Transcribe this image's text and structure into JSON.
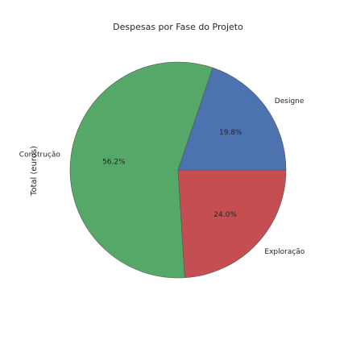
{
  "chart_data": {
    "type": "pie",
    "title": "Despesas por Fase do Projeto",
    "ylabel": "Total (euros)",
    "labels": [
      "Designe",
      "Construção",
      "Exploração"
    ],
    "values": [
      19.8,
      56.2,
      24.0
    ],
    "autopct": [
      "19.8%",
      "56.2%",
      "24.0%"
    ],
    "colors": [
      "#4c72b0",
      "#55a868",
      "#c44e52"
    ],
    "start_angle_deg": 0,
    "direction": "counterclockwise"
  }
}
